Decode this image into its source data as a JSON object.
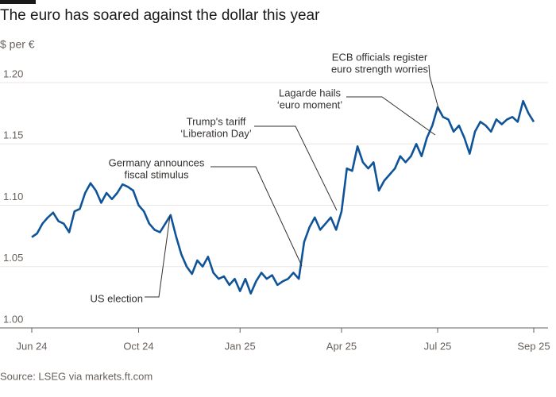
{
  "chart_data": {
    "type": "line",
    "title": "The euro has soared against the dollar this year",
    "subtitle": "$ per €",
    "source": "Source: LSEG via markets.ft.com",
    "categories": [
      "Jun 24",
      null,
      null,
      null,
      null,
      null,
      null,
      null,
      null,
      null,
      null,
      null,
      null,
      null,
      null,
      null,
      null,
      null,
      null,
      null,
      "Oct 24",
      null,
      null,
      null,
      null,
      null,
      null,
      null,
      null,
      null,
      null,
      null,
      null,
      null,
      null,
      null,
      null,
      null,
      null,
      "Jan 25",
      null,
      null,
      null,
      null,
      null,
      null,
      null,
      null,
      null,
      null,
      null,
      null,
      null,
      null,
      null,
      null,
      null,
      null,
      "Apr 25",
      null,
      null,
      null,
      null,
      null,
      null,
      null,
      null,
      null,
      null,
      null,
      null,
      null,
      null,
      null,
      null,
      null,
      "Jul 25",
      null,
      null,
      null,
      null,
      null,
      null,
      null,
      null,
      null,
      null,
      null,
      null,
      null,
      null,
      null,
      null,
      null,
      "Sep 25"
    ],
    "series": [
      {
        "name": "$ per €",
        "color": "#0f5499",
        "values": [
          1.074,
          1.077,
          1.085,
          1.09,
          1.094,
          1.087,
          1.085,
          1.078,
          1.095,
          1.097,
          1.11,
          1.118,
          1.112,
          1.102,
          1.11,
          1.105,
          1.11,
          1.117,
          1.115,
          1.112,
          1.1,
          1.095,
          1.085,
          1.08,
          1.078,
          1.085,
          1.092,
          1.075,
          1.06,
          1.05,
          1.044,
          1.055,
          1.05,
          1.058,
          1.045,
          1.04,
          1.042,
          1.035,
          1.04,
          1.03,
          1.04,
          1.028,
          1.038,
          1.045,
          1.04,
          1.043,
          1.035,
          1.038,
          1.04,
          1.045,
          1.04,
          1.07,
          1.082,
          1.09,
          1.08,
          1.085,
          1.09,
          1.08,
          1.095,
          1.13,
          1.128,
          1.148,
          1.135,
          1.13,
          1.135,
          1.112,
          1.12,
          1.125,
          1.13,
          1.14,
          1.135,
          1.14,
          1.15,
          1.14,
          1.155,
          1.165,
          1.18,
          1.172,
          1.17,
          1.16,
          1.165,
          1.155,
          1.142,
          1.16,
          1.168,
          1.165,
          1.16,
          1.17,
          1.166,
          1.17,
          1.172,
          1.168,
          1.185,
          1.175,
          1.168
        ]
      }
    ],
    "ylim": [
      1,
      1.2
    ],
    "yticks": [
      {
        "value": 1,
        "label": "1.00"
      },
      1.05,
      {
        "value": 1.1,
        "label": "1.10"
      },
      1.15,
      {
        "value": 1.2,
        "label": "1.20"
      }
    ],
    "grid": true,
    "annotations": [
      {
        "lines": [
          "US election"
        ]
      },
      {
        "lines": [
          "Germany announces",
          "fiscal stimulus"
        ]
      },
      {
        "lines": [
          "Trump's tariff",
          "‘Liberation Day’"
        ]
      },
      {
        "lines": [
          "Lagarde hails",
          "‘euro moment’"
        ]
      },
      {
        "lines": [
          "ECB officials register",
          "euro strength worries"
        ]
      }
    ]
  }
}
